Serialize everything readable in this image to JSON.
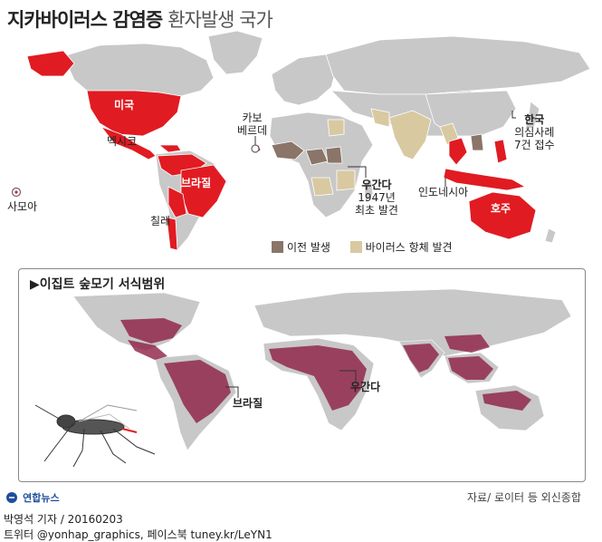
{
  "title": {
    "main": "지카바이러스 감염증",
    "sub": "환자발생 국가"
  },
  "map_labels": {
    "usa": "미국",
    "mexico": "멕시코",
    "brazil": "브라질",
    "chile": "칠레",
    "samoa": "사모아",
    "cape_verde_line1": "카보",
    "cape_verde_line2": "베르데",
    "uganda": "우간다",
    "uganda_note_line1": "1947년",
    "uganda_note_line2": "최초 발견",
    "indonesia": "인도네시아",
    "korea": "한국",
    "korea_note_line1": "의심사례",
    "korea_note_line2": "7건 접수",
    "australia": "호주"
  },
  "legend": {
    "items": [
      {
        "label": "이전 발생",
        "color": "#8a7568"
      },
      {
        "label": "바이러스 항체 발견",
        "color": "#d8c9a1"
      }
    ]
  },
  "colors": {
    "outbreak": "#e11b22",
    "prior": "#8a7568",
    "antibody": "#d8c9a1",
    "land": "#c8c8c8",
    "habitat": "#8e1f45"
  },
  "inset": {
    "title": "▶이집트 숲모기 서식범위",
    "brazil": "브라질",
    "uganda": "우간다",
    "mosquito_icon": "mosquito-icon"
  },
  "footer": {
    "logo_text": "연합뉴스",
    "source": "자료/ 로이터 등 외신종합",
    "byline": "박영석 기자 / 20160203",
    "social": "트위터 @yonhap_graphics, 페이스북 tuney.kr/LeYN1"
  }
}
